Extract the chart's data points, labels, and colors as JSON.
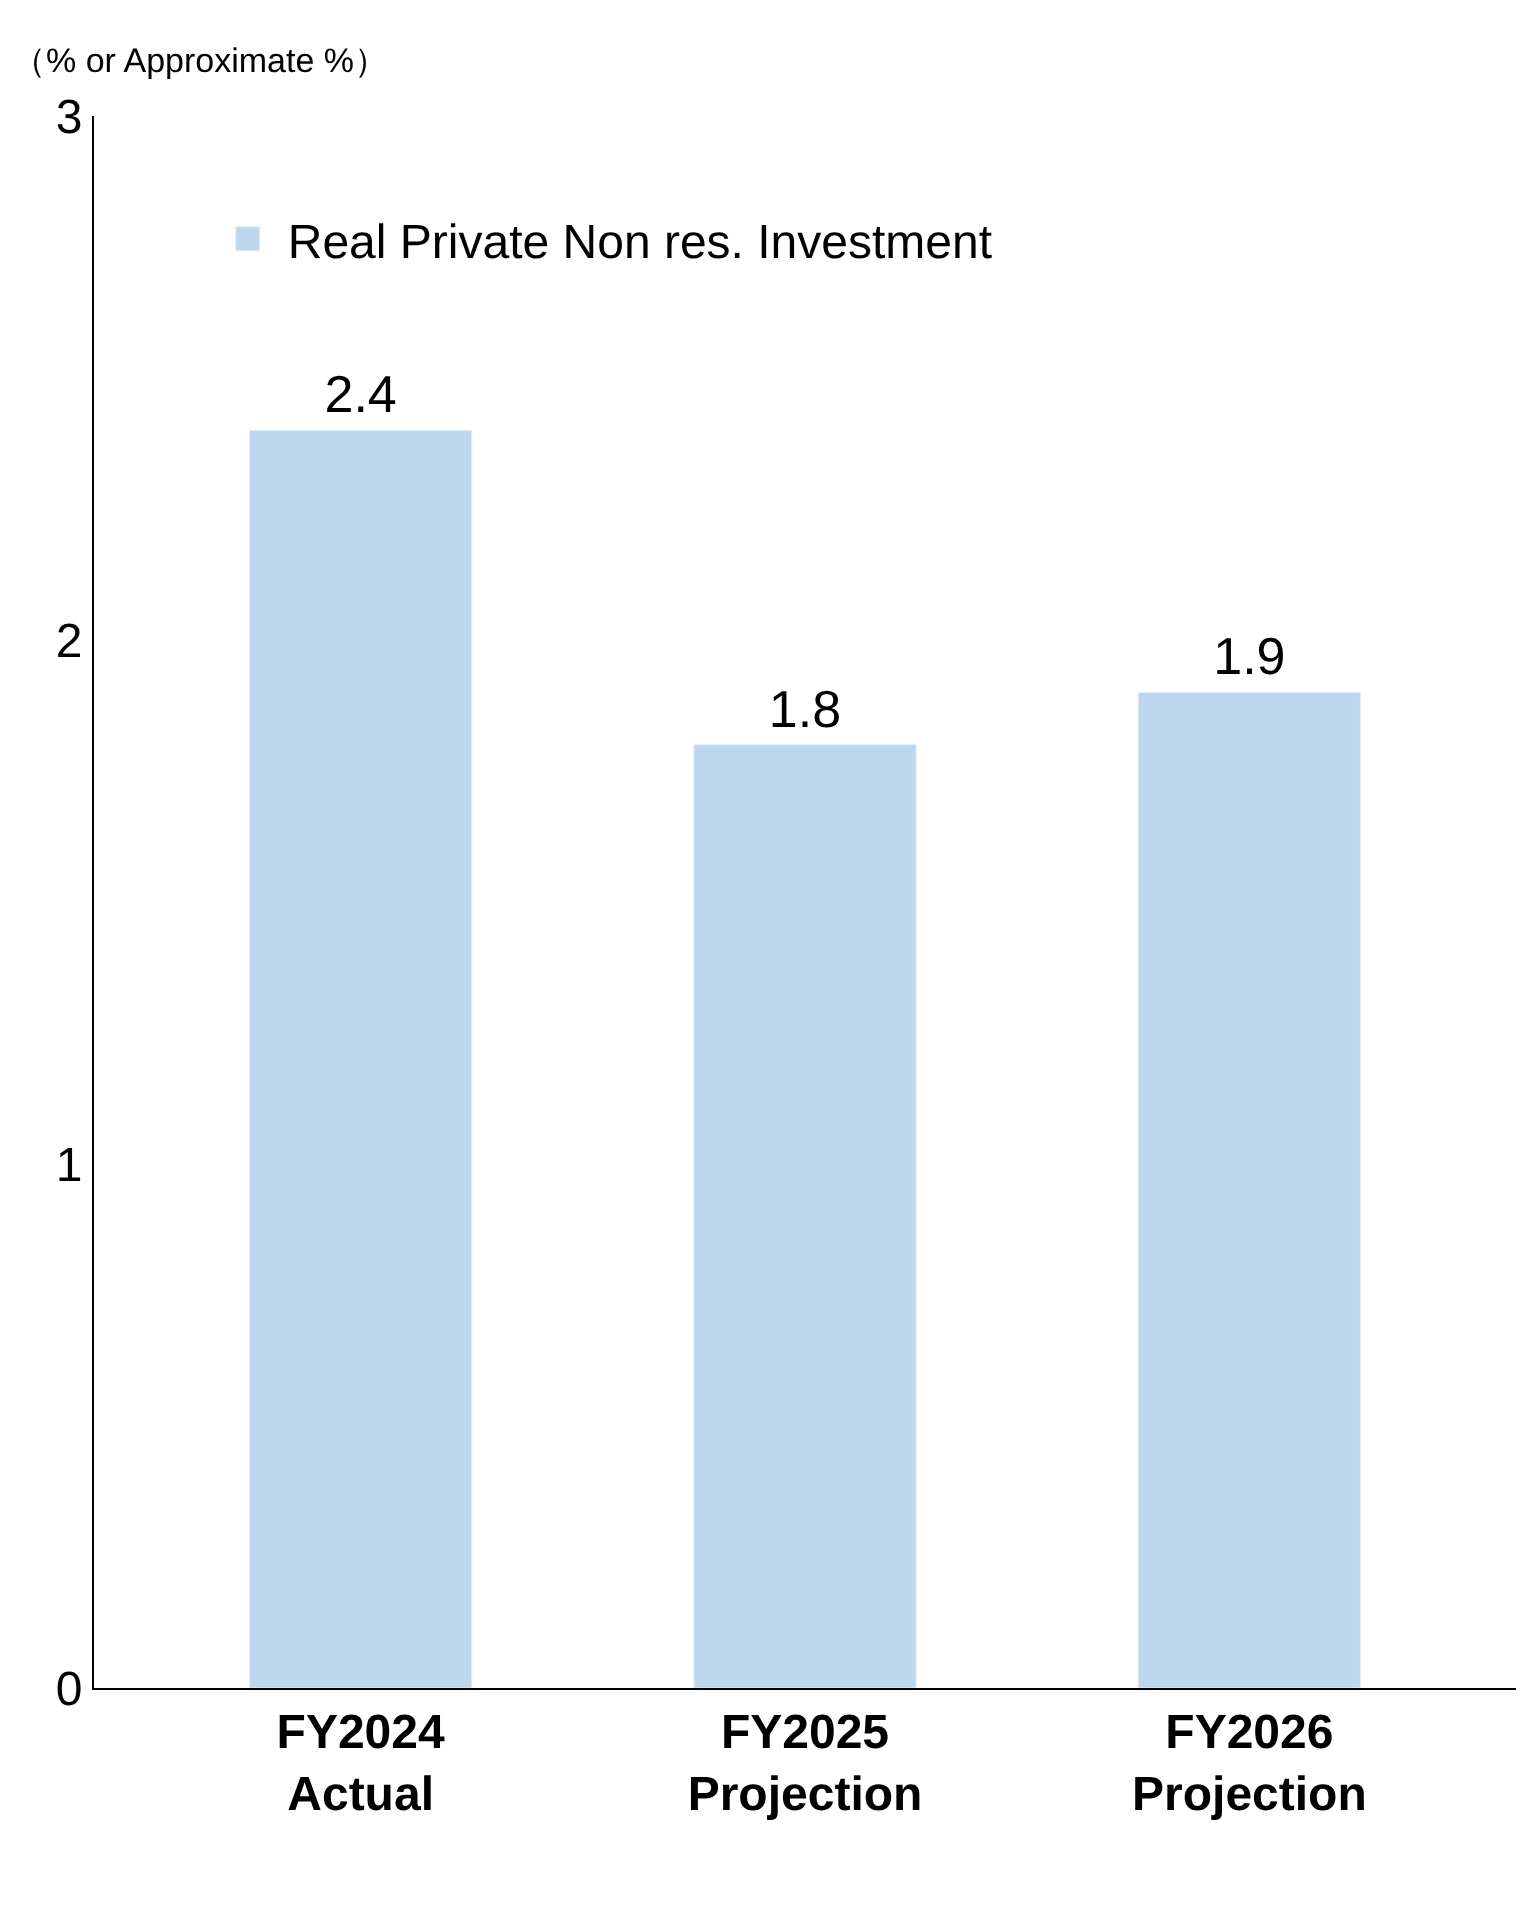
{
  "chart_data": {
    "type": "bar",
    "ylabel": "（% or Approximate %）",
    "categories": [
      "FY2024\nActual",
      "FY2025\nProjection",
      "FY2026\nProjection"
    ],
    "series": [
      {
        "name": "Real Private Non res. Investment",
        "color": "#bdd7ee",
        "values": [
          2.4,
          1.8,
          1.9
        ]
      }
    ],
    "ylim": [
      0,
      3
    ],
    "yticks": [
      0,
      1,
      2,
      3
    ],
    "legend": "top left",
    "data_labels": true
  }
}
